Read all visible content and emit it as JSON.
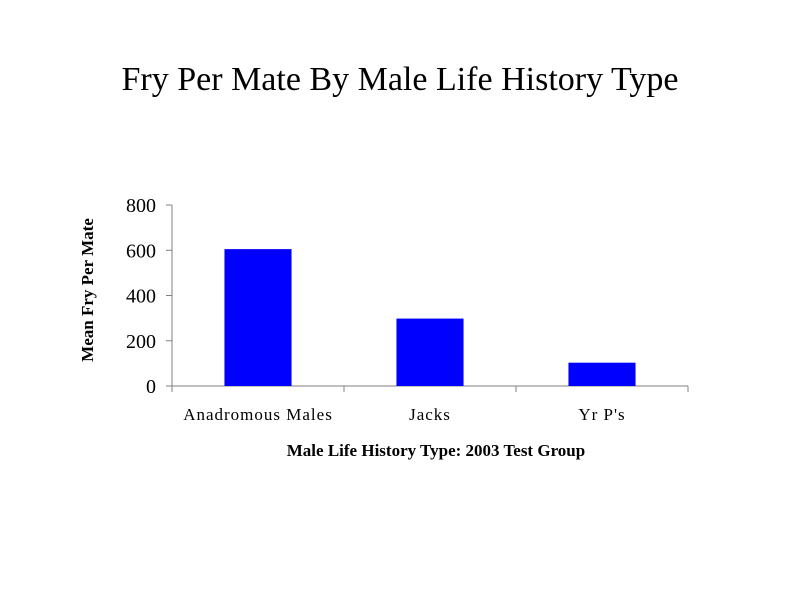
{
  "chart_data": {
    "type": "bar",
    "title": "Fry Per Mate By Male Life History Type",
    "xlabel": "Male Life History Type: 2003 Test Group",
    "ylabel": "Mean Fry Per Mate",
    "categories": [
      "Anadromous Males",
      "Jacks",
      "Yr P's"
    ],
    "values": [
      605,
      298,
      103
    ],
    "ylim": [
      0,
      800
    ],
    "yticks": [
      0,
      200,
      400,
      600,
      800
    ],
    "grid": false,
    "legend": "none",
    "bar_color": "#0000FF"
  }
}
